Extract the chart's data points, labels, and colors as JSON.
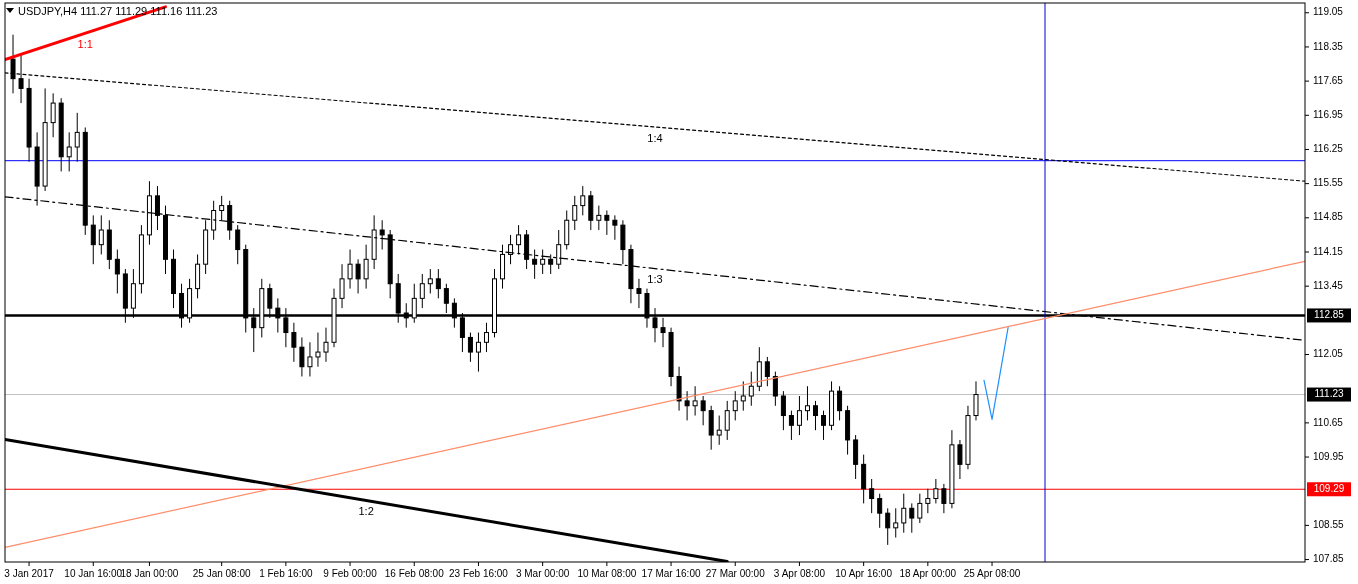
{
  "chart_data": {
    "type": "candlestick",
    "title": "USDJPY,H4 111.27 111.29 111.16 111.23",
    "categories": [
      null,
      null,
      null,
      "3 Jan 2017",
      null,
      null,
      null,
      null,
      null,
      null,
      null,
      "10 Jan 16:00",
      null,
      null,
      null,
      null,
      null,
      null,
      "18 Jan 00:00",
      null,
      null,
      null,
      null,
      null,
      null,
      null,
      null,
      "25 Jan 08:00",
      null,
      null,
      null,
      null,
      null,
      null,
      null,
      "1 Feb 16:00",
      null,
      null,
      null,
      null,
      null,
      null,
      null,
      "9 Feb 00:00",
      null,
      null,
      null,
      null,
      null,
      null,
      null,
      "16 Feb 08:00",
      null,
      null,
      null,
      null,
      null,
      null,
      null,
      "23 Feb 16:00",
      null,
      null,
      null,
      null,
      null,
      null,
      null,
      "3 Mar 00:00",
      null,
      null,
      null,
      null,
      null,
      null,
      null,
      "10 Mar 08:00",
      null,
      null,
      null,
      null,
      null,
      null,
      null,
      "17 Mar 16:00",
      null,
      null,
      null,
      null,
      null,
      null,
      null,
      "27 Mar 00:00",
      null,
      null,
      null,
      null,
      null,
      null,
      null,
      "3 Apr 08:00",
      null,
      null,
      null,
      null,
      null,
      null,
      null,
      "10 Apr 16:00",
      null,
      null,
      null,
      null,
      null,
      null,
      null,
      "18 Apr 00:00",
      null,
      null,
      null,
      null,
      null,
      null,
      null,
      "25 Apr 08:00",
      null,
      null,
      null,
      null,
      null,
      null,
      null,
      null,
      null,
      null,
      null,
      null,
      null,
      null,
      null,
      null,
      null,
      null,
      null,
      null,
      null,
      null,
      null,
      null,
      null,
      null,
      null,
      null,
      null,
      null,
      null,
      null,
      null,
      null,
      null,
      null,
      null,
      null,
      null
    ],
    "ylim": [
      107.8,
      119.25
    ],
    "yticks": [
      119.05,
      118.35,
      117.65,
      116.95,
      116.25,
      115.55,
      114.85,
      114.15,
      113.45,
      112.05,
      110.65,
      109.95,
      108.55,
      107.85
    ],
    "grid": false,
    "legend": false,
    "series": [
      {
        "color": "#000000",
        "ohlc": [
          null,
          [
            118.1,
            118.6,
            117.4,
            117.7
          ],
          [
            117.7,
            118.2,
            117.2,
            117.5
          ],
          [
            117.5,
            117.7,
            116.0,
            116.3
          ],
          [
            116.3,
            116.6,
            115.1,
            115.5
          ],
          [
            115.5,
            117.5,
            115.4,
            116.8
          ],
          [
            116.8,
            117.4,
            116.5,
            117.2
          ],
          [
            117.2,
            117.3,
            115.8,
            116.1
          ],
          [
            116.1,
            116.6,
            115.8,
            116.3
          ],
          [
            116.3,
            117.0,
            116.0,
            116.6
          ],
          [
            116.6,
            116.7,
            114.5,
            114.7
          ],
          [
            114.7,
            114.9,
            113.9,
            114.3
          ],
          [
            114.3,
            114.9,
            114.1,
            114.6
          ],
          [
            114.6,
            114.8,
            113.8,
            114.0
          ],
          [
            114.0,
            114.2,
            113.3,
            113.7
          ],
          [
            113.7,
            113.8,
            112.7,
            113.0
          ],
          [
            113.0,
            113.8,
            112.8,
            113.5
          ],
          [
            113.5,
            114.7,
            113.3,
            114.5
          ],
          [
            114.5,
            115.6,
            114.3,
            115.3
          ],
          [
            115.3,
            115.5,
            114.6,
            114.9
          ],
          [
            114.9,
            115.1,
            113.7,
            114.0
          ],
          [
            114.0,
            114.2,
            113.0,
            113.3
          ],
          [
            113.3,
            113.5,
            112.6,
            112.8
          ],
          [
            112.8,
            113.6,
            112.7,
            113.4
          ],
          [
            113.4,
            114.1,
            113.2,
            113.9
          ],
          [
            113.9,
            114.8,
            113.7,
            114.6
          ],
          [
            114.6,
            115.2,
            114.4,
            115.0
          ],
          [
            115.0,
            115.3,
            114.8,
            115.1
          ],
          [
            115.1,
            115.2,
            114.4,
            114.6
          ],
          [
            114.6,
            114.7,
            113.9,
            114.2
          ],
          [
            114.2,
            114.3,
            112.5,
            112.8
          ],
          [
            112.8,
            113.0,
            112.1,
            112.6
          ],
          [
            112.6,
            113.6,
            112.4,
            113.4
          ],
          [
            113.4,
            113.5,
            112.8,
            113.0
          ],
          [
            113.0,
            113.2,
            112.5,
            112.8
          ],
          [
            112.8,
            113.0,
            112.2,
            112.5
          ],
          [
            112.5,
            112.7,
            111.9,
            112.2
          ],
          [
            112.2,
            112.4,
            111.6,
            111.8
          ],
          [
            111.8,
            112.3,
            111.6,
            112.0
          ],
          [
            112.0,
            112.5,
            111.8,
            112.1
          ],
          [
            112.1,
            112.6,
            111.9,
            112.3
          ],
          [
            112.3,
            113.4,
            112.2,
            113.2
          ],
          [
            113.2,
            113.9,
            113.0,
            113.6
          ],
          [
            113.6,
            114.2,
            113.4,
            113.9
          ],
          [
            113.9,
            114.0,
            113.3,
            113.6
          ],
          [
            113.6,
            114.3,
            113.4,
            114.0
          ],
          [
            114.0,
            114.9,
            113.8,
            114.6
          ],
          [
            114.6,
            114.8,
            114.2,
            114.5
          ],
          [
            114.5,
            114.6,
            113.2,
            113.5
          ],
          [
            113.5,
            113.7,
            112.7,
            112.9
          ],
          [
            112.9,
            113.1,
            112.6,
            112.8
          ],
          [
            112.8,
            113.5,
            112.7,
            113.2
          ],
          [
            113.2,
            113.7,
            113.0,
            113.5
          ],
          [
            113.5,
            113.8,
            113.3,
            113.6
          ],
          [
            113.6,
            113.8,
            113.2,
            113.4
          ],
          [
            113.4,
            113.5,
            112.9,
            113.1
          ],
          [
            113.1,
            113.2,
            112.6,
            112.8
          ],
          [
            112.8,
            112.9,
            112.1,
            112.4
          ],
          [
            112.4,
            112.5,
            111.9,
            112.1
          ],
          [
            112.1,
            112.5,
            111.7,
            112.3
          ],
          [
            112.3,
            112.7,
            112.1,
            112.5
          ],
          [
            112.5,
            113.8,
            112.4,
            113.6
          ],
          [
            113.6,
            114.3,
            113.4,
            114.1
          ],
          [
            114.1,
            114.5,
            113.9,
            114.3
          ],
          [
            114.3,
            114.7,
            114.1,
            114.5
          ],
          [
            114.5,
            114.6,
            113.8,
            114.0
          ],
          [
            114.0,
            114.2,
            113.6,
            113.9
          ],
          [
            113.9,
            114.2,
            113.7,
            114.0
          ],
          [
            114.0,
            114.1,
            113.7,
            113.9
          ],
          [
            113.9,
            114.6,
            113.8,
            114.3
          ],
          [
            114.3,
            115.0,
            114.2,
            114.8
          ],
          [
            114.8,
            115.3,
            114.6,
            115.1
          ],
          [
            115.1,
            115.5,
            114.9,
            115.3
          ],
          [
            115.3,
            115.4,
            114.6,
            114.8
          ],
          [
            114.8,
            115.1,
            114.6,
            114.9
          ],
          [
            114.9,
            115.0,
            114.5,
            114.8
          ],
          [
            114.8,
            114.9,
            114.4,
            114.7
          ],
          [
            114.7,
            114.8,
            113.9,
            114.2
          ],
          [
            114.2,
            114.3,
            113.1,
            113.4
          ],
          [
            113.4,
            113.6,
            113.0,
            113.3
          ],
          [
            113.3,
            113.4,
            112.6,
            112.8
          ],
          [
            112.8,
            113.0,
            112.3,
            112.6
          ],
          [
            112.6,
            112.8,
            112.2,
            112.5
          ],
          [
            112.5,
            112.6,
            111.4,
            111.6
          ],
          [
            111.6,
            111.8,
            110.9,
            111.1
          ],
          [
            111.1,
            111.3,
            110.7,
            111.0
          ],
          [
            111.0,
            111.4,
            110.8,
            111.1
          ],
          [
            111.1,
            111.2,
            110.6,
            110.9
          ],
          [
            110.9,
            111.0,
            110.1,
            110.4
          ],
          [
            110.4,
            110.8,
            110.2,
            110.5
          ],
          [
            110.5,
            111.1,
            110.3,
            110.9
          ],
          [
            110.9,
            111.3,
            110.7,
            111.1
          ],
          [
            111.1,
            111.5,
            110.9,
            111.2
          ],
          [
            111.2,
            111.7,
            111.0,
            111.4
          ],
          [
            111.4,
            112.2,
            111.3,
            111.9
          ],
          [
            111.9,
            112.0,
            111.4,
            111.6
          ],
          [
            111.6,
            111.7,
            111.0,
            111.2
          ],
          [
            111.2,
            111.3,
            110.5,
            110.8
          ],
          [
            110.8,
            110.9,
            110.3,
            110.6
          ],
          [
            110.6,
            111.2,
            110.4,
            110.9
          ],
          [
            110.9,
            111.4,
            110.7,
            111.0
          ],
          [
            111.0,
            111.1,
            110.5,
            110.8
          ],
          [
            110.8,
            110.9,
            110.3,
            110.6
          ],
          [
            110.6,
            111.5,
            110.5,
            111.3
          ],
          [
            111.3,
            111.4,
            110.7,
            110.9
          ],
          [
            110.9,
            111.0,
            110.0,
            110.3
          ],
          [
            110.3,
            110.4,
            109.5,
            109.8
          ],
          [
            109.8,
            110.0,
            109.0,
            109.3
          ],
          [
            109.3,
            109.5,
            108.8,
            109.1
          ],
          [
            109.1,
            109.2,
            108.5,
            108.8
          ],
          [
            108.8,
            108.9,
            108.15,
            108.5
          ],
          [
            108.5,
            108.9,
            108.3,
            108.6
          ],
          [
            108.6,
            109.2,
            108.4,
            108.9
          ],
          [
            108.9,
            109.0,
            108.4,
            108.7
          ],
          [
            108.7,
            109.2,
            108.6,
            109.0
          ],
          [
            109.0,
            109.3,
            108.8,
            109.1
          ],
          [
            109.1,
            109.5,
            109.0,
            109.3
          ],
          [
            109.3,
            109.4,
            108.8,
            109.0
          ],
          [
            109.0,
            110.5,
            108.9,
            110.2
          ],
          [
            110.2,
            110.3,
            109.5,
            109.8
          ],
          [
            109.8,
            111.0,
            109.7,
            110.8
          ],
          [
            110.8,
            111.5,
            110.7,
            111.23
          ],
          null,
          null,
          null,
          null,
          null,
          null,
          null,
          null,
          null,
          null,
          null,
          null,
          null,
          null,
          null,
          null,
          null,
          null,
          null,
          null,
          null,
          null,
          null,
          null,
          null,
          null,
          null,
          null,
          null,
          null,
          null,
          null,
          null,
          null,
          null,
          null,
          null,
          null,
          null,
          null,
          null
        ]
      },
      {
        "type": "line",
        "name": "1:1",
        "color": "#ff0000",
        "line_style": "solid",
        "values": [
          118.09,
          null,
          null,
          null,
          null,
          null,
          null,
          null,
          null,
          null,
          null,
          null,
          null,
          null,
          null,
          null,
          null,
          null,
          null,
          null,
          119.17,
          null,
          null,
          null,
          null,
          null,
          null,
          null,
          null,
          null,
          null,
          null,
          null,
          null,
          null,
          null,
          null,
          null,
          null,
          null,
          null,
          null,
          null,
          null,
          null,
          null,
          null,
          null,
          null,
          null,
          null,
          null,
          null,
          null,
          null,
          null,
          null,
          null,
          null,
          null,
          null,
          null,
          null,
          null,
          null,
          null,
          null,
          null,
          null,
          null,
          null,
          null,
          null,
          null,
          null,
          null,
          null,
          null,
          null,
          null,
          null,
          null,
          null,
          null,
          null,
          null,
          null,
          null,
          null,
          null,
          null,
          null,
          null,
          null,
          null,
          null,
          null,
          null,
          null,
          null,
          null,
          null,
          null,
          null,
          null,
          null,
          null,
          null,
          null,
          null,
          null,
          null,
          null,
          null,
          null,
          null,
          null,
          null,
          null,
          null,
          null,
          null,
          null,
          null,
          null,
          null,
          null,
          null,
          null,
          null,
          null,
          null,
          null,
          null,
          null,
          null,
          null,
          null,
          null,
          null,
          null,
          null,
          null,
          null,
          null,
          null,
          null,
          null,
          null,
          null,
          null,
          null,
          null,
          null,
          null,
          null,
          null,
          null,
          null,
          null,
          null,
          null,
          null
        ]
      },
      {
        "type": "line",
        "name": "1:4",
        "color": "#000000",
        "line_style": "dotted",
        "values": [
          117.82,
          null,
          null,
          null,
          null,
          null,
          null,
          null,
          null,
          null,
          null,
          null,
          null,
          null,
          null,
          null,
          null,
          null,
          null,
          null,
          null,
          null,
          null,
          null,
          null,
          null,
          null,
          null,
          null,
          null,
          null,
          null,
          null,
          null,
          null,
          null,
          null,
          null,
          null,
          null,
          null,
          null,
          null,
          null,
          null,
          null,
          null,
          null,
          null,
          null,
          null,
          null,
          null,
          null,
          null,
          null,
          null,
          null,
          null,
          null,
          null,
          null,
          null,
          null,
          null,
          null,
          null,
          null,
          null,
          null,
          null,
          null,
          null,
          null,
          null,
          null,
          null,
          null,
          null,
          null,
          null,
          null,
          null,
          null,
          null,
          null,
          null,
          null,
          null,
          null,
          null,
          null,
          null,
          null,
          null,
          null,
          null,
          null,
          null,
          null,
          null,
          null,
          null,
          null,
          null,
          null,
          null,
          null,
          null,
          null,
          null,
          null,
          null,
          null,
          null,
          null,
          null,
          null,
          null,
          null,
          null,
          null,
          null,
          null,
          null,
          null,
          null,
          null,
          null,
          null,
          null,
          null,
          null,
          null,
          null,
          null,
          null,
          null,
          null,
          null,
          null,
          null,
          null,
          null,
          null,
          null,
          null,
          null,
          null,
          null,
          null,
          null,
          null,
          null,
          null,
          null,
          null,
          null,
          null,
          null,
          null,
          null,
          115.6
        ]
      },
      {
        "type": "line",
        "name": "1:3",
        "color": "#000000",
        "line_style": "dashed",
        "values": [
          115.28,
          null,
          null,
          null,
          null,
          null,
          null,
          null,
          null,
          null,
          null,
          null,
          null,
          null,
          null,
          null,
          null,
          null,
          null,
          null,
          null,
          null,
          null,
          null,
          null,
          null,
          null,
          null,
          null,
          null,
          null,
          null,
          null,
          null,
          null,
          null,
          null,
          null,
          null,
          null,
          null,
          null,
          null,
          null,
          null,
          null,
          null,
          null,
          null,
          null,
          null,
          null,
          null,
          null,
          null,
          null,
          null,
          null,
          null,
          null,
          null,
          null,
          null,
          null,
          null,
          null,
          null,
          null,
          null,
          null,
          null,
          null,
          null,
          null,
          null,
          null,
          null,
          null,
          null,
          null,
          null,
          null,
          null,
          null,
          null,
          null,
          null,
          null,
          null,
          null,
          null,
          null,
          null,
          null,
          null,
          null,
          null,
          null,
          null,
          null,
          null,
          null,
          null,
          null,
          null,
          null,
          null,
          null,
          null,
          null,
          null,
          null,
          null,
          null,
          null,
          null,
          null,
          null,
          null,
          null,
          null,
          null,
          null,
          null,
          null,
          null,
          null,
          null,
          null,
          null,
          null,
          null,
          null,
          null,
          null,
          null,
          null,
          null,
          null,
          null,
          null,
          null,
          null,
          null,
          null,
          null,
          null,
          null,
          null,
          null,
          null,
          null,
          null,
          null,
          null,
          null,
          null,
          null,
          null,
          null,
          null,
          null,
          112.34
        ]
      },
      {
        "type": "line",
        "color": "#ff8c69",
        "line_style": "solid",
        "values": [
          108.1,
          null,
          null,
          null,
          null,
          null,
          null,
          null,
          null,
          null,
          null,
          null,
          null,
          null,
          null,
          null,
          null,
          null,
          null,
          null,
          null,
          null,
          null,
          null,
          null,
          null,
          null,
          null,
          null,
          null,
          null,
          null,
          null,
          null,
          null,
          null,
          null,
          null,
          null,
          null,
          null,
          null,
          null,
          null,
          null,
          null,
          null,
          null,
          null,
          null,
          null,
          null,
          null,
          null,
          null,
          null,
          null,
          null,
          null,
          null,
          null,
          null,
          null,
          null,
          null,
          null,
          null,
          null,
          null,
          null,
          null,
          null,
          null,
          null,
          null,
          null,
          null,
          null,
          null,
          null,
          null,
          null,
          null,
          null,
          null,
          null,
          null,
          null,
          null,
          null,
          null,
          null,
          null,
          null,
          null,
          null,
          null,
          null,
          null,
          null,
          null,
          null,
          null,
          null,
          null,
          null,
          null,
          null,
          null,
          null,
          null,
          null,
          null,
          null,
          null,
          null,
          null,
          null,
          null,
          null,
          null,
          null,
          null,
          null,
          null,
          null,
          null,
          null,
          null,
          null,
          null,
          null,
          null,
          null,
          null,
          null,
          null,
          null,
          null,
          null,
          null,
          null,
          null,
          null,
          null,
          null,
          null,
          null,
          null,
          null,
          null,
          null,
          null,
          null,
          null,
          null,
          null,
          null,
          null,
          null,
          null,
          null,
          113.96
        ]
      },
      {
        "type": "line",
        "name": "1:2",
        "color": "#000000",
        "line_style": "solid",
        "values": [
          110.31,
          null,
          null,
          null,
          null,
          null,
          null,
          null,
          null,
          null,
          null,
          null,
          null,
          null,
          null,
          null,
          null,
          null,
          null,
          null,
          null,
          null,
          null,
          null,
          null,
          null,
          null,
          null,
          null,
          null,
          null,
          null,
          null,
          null,
          null,
          null,
          null,
          null,
          null,
          null,
          null,
          null,
          null,
          null,
          null,
          null,
          null,
          null,
          null,
          null,
          null,
          null,
          null,
          null,
          null,
          null,
          null,
          null,
          null,
          null,
          null,
          null,
          null,
          null,
          null,
          null,
          null,
          null,
          null,
          null,
          null,
          null,
          null,
          null,
          null,
          null,
          null,
          null,
          null,
          null,
          null,
          null,
          null,
          null,
          null,
          null,
          null,
          null,
          null,
          null,
          107.81,
          null,
          null,
          null,
          null,
          null,
          null,
          null,
          null,
          null,
          null,
          null,
          null,
          null,
          null,
          null,
          null,
          null,
          null,
          null,
          null,
          null,
          null,
          null,
          null,
          null,
          null,
          null,
          null,
          null,
          null,
          null,
          null,
          null,
          null,
          null,
          null,
          null,
          null,
          null,
          null,
          null,
          null,
          null,
          null,
          null,
          null,
          null,
          null,
          null,
          null,
          null,
          null,
          null,
          null,
          null,
          null,
          null,
          null,
          null,
          null,
          null,
          null,
          null,
          null,
          null,
          null,
          null,
          null,
          null,
          null,
          null,
          null
        ]
      },
      {
        "type": "line",
        "color": "#1e90ff",
        "line_style": "solid",
        "values": [
          null,
          null,
          null,
          null,
          null,
          null,
          null,
          null,
          null,
          null,
          null,
          null,
          null,
          null,
          null,
          null,
          null,
          null,
          null,
          null,
          null,
          null,
          null,
          null,
          null,
          null,
          null,
          null,
          null,
          null,
          null,
          null,
          null,
          null,
          null,
          null,
          null,
          null,
          null,
          null,
          null,
          null,
          null,
          null,
          null,
          null,
          null,
          null,
          null,
          null,
          null,
          null,
          null,
          null,
          null,
          null,
          null,
          null,
          null,
          null,
          null,
          null,
          null,
          null,
          null,
          null,
          null,
          null,
          null,
          null,
          null,
          null,
          null,
          null,
          null,
          null,
          null,
          null,
          null,
          null,
          null,
          null,
          null,
          null,
          null,
          null,
          null,
          null,
          null,
          null,
          null,
          null,
          null,
          null,
          null,
          null,
          null,
          null,
          null,
          null,
          null,
          null,
          null,
          null,
          null,
          null,
          null,
          null,
          null,
          null,
          null,
          null,
          null,
          null,
          null,
          null,
          null,
          null,
          null,
          null,
          null,
          null,
          111.52,
          110.72,
          111.66,
          112.6,
          null,
          null,
          null,
          null,
          null,
          null,
          null,
          null,
          null,
          null,
          null,
          null,
          null,
          null,
          null,
          null,
          null,
          null,
          null,
          null,
          null,
          null,
          null,
          null,
          null,
          null,
          null,
          null,
          null,
          null,
          null,
          null,
          null,
          null,
          null,
          null,
          null
        ]
      }
    ],
    "ref_lines": [
      {
        "axis": "y",
        "value": 116.02,
        "color": "#0000ff"
      },
      {
        "axis": "y",
        "value": 112.85,
        "label": "112.85",
        "color": "#000000"
      },
      {
        "axis": "y",
        "value": 111.23,
        "label": "111.23",
        "color": "#c0c0c0"
      },
      {
        "axis": "y",
        "value": 109.29,
        "label": "109.29",
        "color": "#ff0000"
      }
    ]
  }
}
